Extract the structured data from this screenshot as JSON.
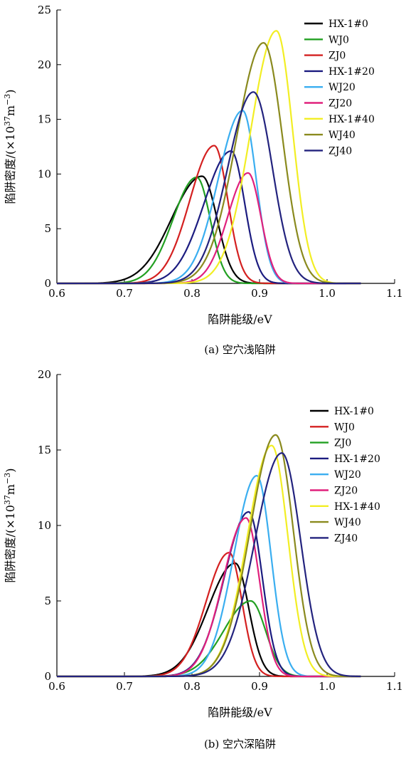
{
  "chart_data": [
    {
      "type": "line",
      "caption": "(a) 空穴浅陷阱",
      "xlabel": "陷阱能级/eV",
      "ylabel": "陷阱密度/(×10",
      "ylabel_exp": "37",
      "ylabel_unit": "m",
      "ylabel_unit_exp": "−3",
      "ylabel_close": ")",
      "xlim": [
        0.6,
        1.1
      ],
      "ylim": [
        0,
        25
      ],
      "xticks": [
        "0.6",
        "0.7",
        "0.8",
        "0.9",
        "1.0",
        "1.1"
      ],
      "yticks": [
        "0",
        "5",
        "10",
        "15",
        "20",
        "25"
      ],
      "legend_position": "top-right",
      "series": [
        {
          "name": "HX-1#0",
          "color": "#000000",
          "peak_x": 0.815,
          "peak_y": 9.8,
          "sigma_left": 0.045,
          "sigma_right": 0.022
        },
        {
          "name": "WJ0",
          "color": "#22a022",
          "peak_x": 0.807,
          "peak_y": 9.7,
          "sigma_left": 0.035,
          "sigma_right": 0.02
        },
        {
          "name": "ZJ0",
          "color": "#d42020",
          "peak_x": 0.833,
          "peak_y": 12.6,
          "sigma_left": 0.036,
          "sigma_right": 0.02
        },
        {
          "name": "HX-1#20",
          "color": "#1c1c80",
          "peak_x": 0.858,
          "peak_y": 12.1,
          "sigma_left": 0.04,
          "sigma_right": 0.02
        },
        {
          "name": "WJ20",
          "color": "#3aaef0",
          "peak_x": 0.875,
          "peak_y": 15.8,
          "sigma_left": 0.036,
          "sigma_right": 0.02
        },
        {
          "name": "ZJ20",
          "color": "#e0207c",
          "peak_x": 0.883,
          "peak_y": 10.1,
          "sigma_left": 0.03,
          "sigma_right": 0.019
        },
        {
          "name": "HX-1#40",
          "color": "#f2ee24",
          "peak_x": 0.925,
          "peak_y": 23.1,
          "sigma_left": 0.038,
          "sigma_right": 0.024
        },
        {
          "name": "WJ40",
          "color": "#8a8a1e",
          "peak_x": 0.906,
          "peak_y": 22.0,
          "sigma_left": 0.04,
          "sigma_right": 0.028
        },
        {
          "name": "ZJ40",
          "color": "#23237e",
          "peak_x": 0.891,
          "peak_y": 17.5,
          "sigma_left": 0.038,
          "sigma_right": 0.028
        }
      ]
    },
    {
      "type": "line",
      "caption": "(b) 空穴深陷阱",
      "xlabel": "陷阱能级/eV",
      "ylabel": "陷阱密度/(×10",
      "ylabel_exp": "37",
      "ylabel_unit": "m",
      "ylabel_unit_exp": "−3",
      "ylabel_close": ")",
      "xlim": [
        0.6,
        1.1
      ],
      "ylim": [
        0,
        20
      ],
      "xticks": [
        "0.6",
        "0.7",
        "0.8",
        "0.9",
        "1.0",
        "1.1"
      ],
      "yticks": [
        "0",
        "5",
        "10",
        "15",
        "20"
      ],
      "legend_position": "top-right",
      "series": [
        {
          "name": "HX-1#0",
          "color": "#000000",
          "peak_x": 0.864,
          "peak_y": 7.5,
          "sigma_left": 0.04,
          "sigma_right": 0.02
        },
        {
          "name": "WJ0",
          "color": "#d42020",
          "peak_x": 0.855,
          "peak_y": 8.2,
          "sigma_left": 0.034,
          "sigma_right": 0.019
        },
        {
          "name": "ZJ0",
          "color": "#22a022",
          "peak_x": 0.887,
          "peak_y": 5.0,
          "sigma_left": 0.04,
          "sigma_right": 0.022
        },
        {
          "name": "HX-1#20",
          "color": "#1c1c80",
          "peak_x": 0.884,
          "peak_y": 10.9,
          "sigma_left": 0.036,
          "sigma_right": 0.02
        },
        {
          "name": "WJ20",
          "color": "#3aaef0",
          "peak_x": 0.896,
          "peak_y": 13.3,
          "sigma_left": 0.034,
          "sigma_right": 0.021
        },
        {
          "name": "ZJ20",
          "color": "#e0207c",
          "peak_x": 0.88,
          "peak_y": 10.5,
          "sigma_left": 0.034,
          "sigma_right": 0.02
        },
        {
          "name": "HX-1#40",
          "color": "#f2ee24",
          "peak_x": 0.918,
          "peak_y": 15.3,
          "sigma_left": 0.036,
          "sigma_right": 0.024
        },
        {
          "name": "WJ40",
          "color": "#8a8a1e",
          "peak_x": 0.924,
          "peak_y": 16.0,
          "sigma_left": 0.038,
          "sigma_right": 0.026
        },
        {
          "name": "ZJ40",
          "color": "#23237e",
          "peak_x": 0.933,
          "peak_y": 14.8,
          "sigma_left": 0.04,
          "sigma_right": 0.028
        }
      ]
    }
  ]
}
